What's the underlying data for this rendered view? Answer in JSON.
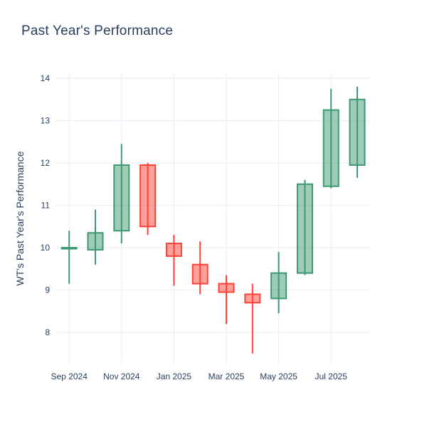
{
  "title": "Past Year's Performance",
  "colors": {
    "font": "#2a3f5f",
    "grid": "#ebf0f8",
    "background": "#ffffff",
    "increasing_line": "#3d9970",
    "increasing_fill": "rgba(61,153,112,0.5)",
    "decreasing_line": "#ff4136",
    "decreasing_fill": "rgba(255,65,54,0.5)"
  },
  "chart_data": {
    "type": "candlestick",
    "title": "Past Year's Performance",
    "xlabel": "",
    "ylabel": "WT's Past Year's Performance",
    "legend": "none",
    "grid": true,
    "ylim": [
      7.35,
      14.15
    ],
    "y_ticks": [
      8,
      9,
      10,
      11,
      12,
      13,
      14
    ],
    "x_tick_labels": [
      "Sep 2024",
      "Nov 2024",
      "Jan 2025",
      "Mar 2025",
      "May 2025",
      "Jul 2025"
    ],
    "candles": [
      {
        "month": "Sep 2024",
        "open": 10.0,
        "high": 10.4,
        "low": 9.15,
        "close": 10.0,
        "direction": "up"
      },
      {
        "month": "Oct 2024",
        "open": 9.95,
        "high": 10.9,
        "low": 9.6,
        "close": 10.35,
        "direction": "up"
      },
      {
        "month": "Nov 2024",
        "open": 10.4,
        "high": 12.45,
        "low": 10.1,
        "close": 11.95,
        "direction": "up"
      },
      {
        "month": "Dec 2024",
        "open": 11.95,
        "high": 12.0,
        "low": 10.3,
        "close": 10.5,
        "direction": "down"
      },
      {
        "month": "Jan 2025",
        "open": 10.1,
        "high": 10.3,
        "low": 9.1,
        "close": 9.8,
        "direction": "down"
      },
      {
        "month": "Feb 2025",
        "open": 9.6,
        "high": 10.15,
        "low": 8.9,
        "close": 9.15,
        "direction": "down"
      },
      {
        "month": "Mar 2025",
        "open": 9.15,
        "high": 9.35,
        "low": 8.2,
        "close": 8.95,
        "direction": "down"
      },
      {
        "month": "Apr 2025",
        "open": 8.9,
        "high": 9.15,
        "low": 7.5,
        "close": 8.7,
        "direction": "down"
      },
      {
        "month": "May 2025",
        "open": 8.8,
        "high": 9.9,
        "low": 8.45,
        "close": 9.4,
        "direction": "up"
      },
      {
        "month": "Jun 2025",
        "open": 9.4,
        "high": 11.6,
        "low": 9.35,
        "close": 11.5,
        "direction": "up"
      },
      {
        "month": "Jul 2025",
        "open": 11.45,
        "high": 13.75,
        "low": 11.4,
        "close": 13.25,
        "direction": "up"
      },
      {
        "month": "Aug 2025",
        "open": 11.95,
        "high": 13.8,
        "low": 11.65,
        "close": 13.5,
        "direction": "up"
      }
    ]
  }
}
